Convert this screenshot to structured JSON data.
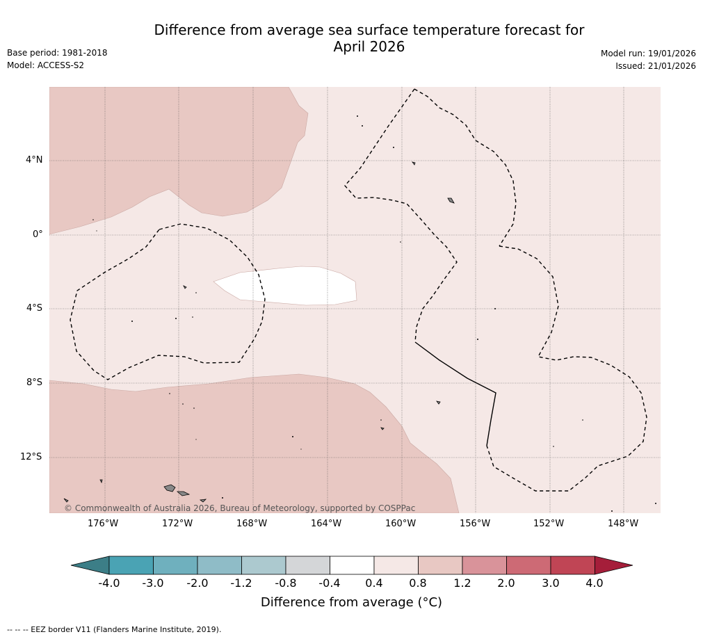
{
  "header": {
    "title_line1": "Difference from average sea surface temperature forecast for",
    "title_line2": "April 2026",
    "base_period": "Base period: 1981-2018",
    "model": "Model: ACCESS-S2",
    "model_run": "Model run: 19/01/2026",
    "issued": "Issued: 21/01/2026"
  },
  "map": {
    "lon_ticks": [
      "176°W",
      "172°W",
      "168°W",
      "164°W",
      "160°W",
      "156°W",
      "152°W",
      "148°W"
    ],
    "lat_ticks": [
      "4°N",
      "0°",
      "4°S",
      "8°S",
      "12°S"
    ],
    "copyright": "© Commonwealth of Australia 2026, Bureau of Meteorology, supported by COSPPac",
    "colors": {
      "band_0p4_0p8": "#f5e8e6",
      "band_0p8_1p2": "#e8c8c3",
      "band_m0p4_0p4": "#ffffff"
    }
  },
  "colorbar": {
    "labels": [
      "-4.0",
      "-3.0",
      "-2.0",
      "-1.2",
      "-0.8",
      "-0.4",
      "0.4",
      "0.8",
      "1.2",
      "2.0",
      "3.0",
      "4.0"
    ],
    "colors": [
      "#3c7e87",
      "#4aa3b4",
      "#6fb0be",
      "#8fbcc7",
      "#acc9cf",
      "#d4d6d8",
      "#ffffff",
      "#f5e8e6",
      "#e8c8c3",
      "#d9939a",
      "#cd6a75",
      "#c04555",
      "#a51e3a"
    ],
    "title": "Difference from average (°C)"
  },
  "footnote": "--  --  -- EEZ border V11 (Flanders Marine Institute, 2019)."
}
